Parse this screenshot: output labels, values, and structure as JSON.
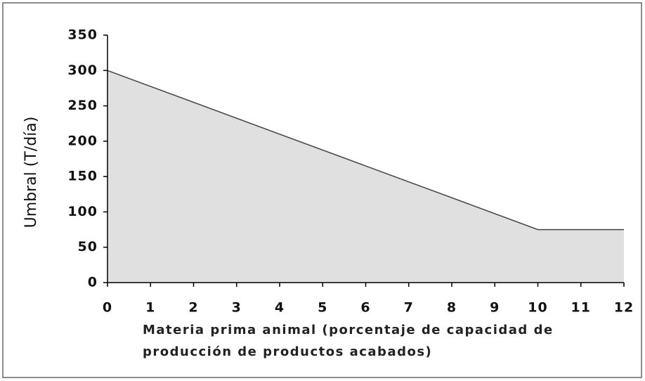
{
  "chart_data": {
    "type": "area",
    "ylabel": "Umbral (T/día)",
    "xlabel": [
      "Materia prima animal (porcentaje de capacidad de",
      "producción de productos acabados)"
    ],
    "x": [
      0,
      6,
      10,
      12
    ],
    "values": [
      300,
      165,
      75,
      75
    ],
    "color": "#e0e0e0",
    "line_color": "#444444",
    "xlim": [
      0,
      12
    ],
    "xticks": [
      0,
      1,
      2,
      3,
      4,
      5,
      6,
      7,
      8,
      9,
      10,
      11,
      12
    ],
    "ylim": [
      0,
      350
    ],
    "yticks": [
      0,
      50,
      100,
      150,
      200,
      250,
      300,
      350
    ],
    "grid": false
  }
}
